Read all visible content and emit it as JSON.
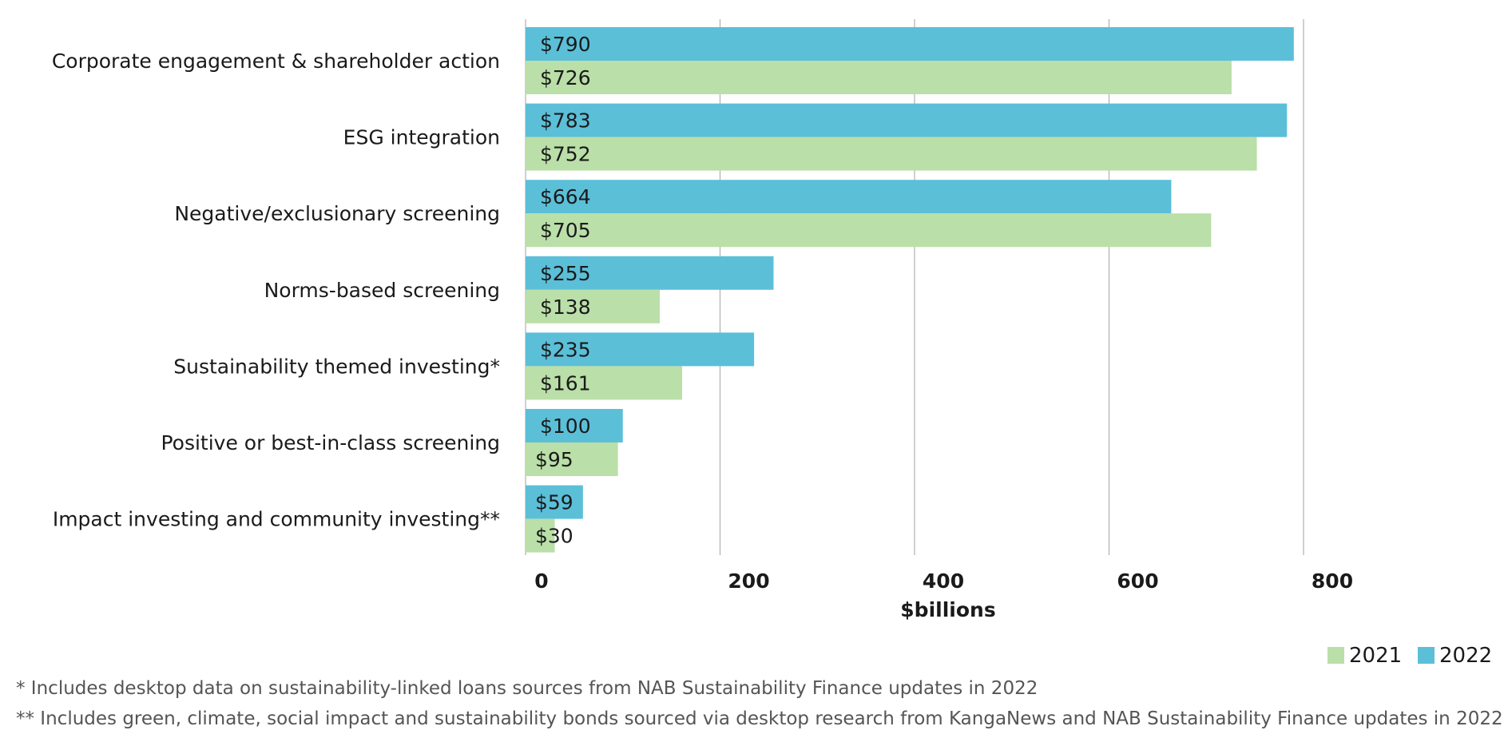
{
  "chart_data": {
    "type": "bar",
    "orientation": "horizontal",
    "categories": [
      "Corporate engagement & shareholder action",
      "ESG integration",
      "Negative/exclusionary screening",
      "Norms-based screening",
      "Sustainability themed investing*",
      "Positive or best-in-class screening",
      "Impact investing and community investing**"
    ],
    "series": [
      {
        "name": "2022",
        "color": "#5bbfd8",
        "values": [
          790,
          783,
          664,
          255,
          235,
          100,
          59
        ],
        "labels": [
          "$790",
          "$783",
          "$664",
          "$255",
          "$235",
          "$100",
          "$59"
        ]
      },
      {
        "name": "2021",
        "color": "#badfa8",
        "values": [
          726,
          752,
          705,
          138,
          161,
          95,
          30
        ],
        "labels": [
          "$726",
          "$752",
          "$705",
          "$138",
          "$161",
          "$95",
          "$30"
        ]
      }
    ],
    "legend_order": [
      "2021",
      "2022"
    ],
    "xlabel": "$billions",
    "xlim": [
      0,
      800
    ],
    "xticks": [
      "0",
      "200",
      "400",
      "600",
      "800"
    ],
    "grid": true,
    "legend": "bottom-right"
  },
  "footnotes": [
    "* Includes desktop data on sustainability-linked loans sources from NAB Sustainability Finance updates in 2022",
    "** Includes green, climate, social impact and sustainability bonds sourced via desktop research from KangaNews and NAB Sustainability Finance updates in 2022"
  ]
}
